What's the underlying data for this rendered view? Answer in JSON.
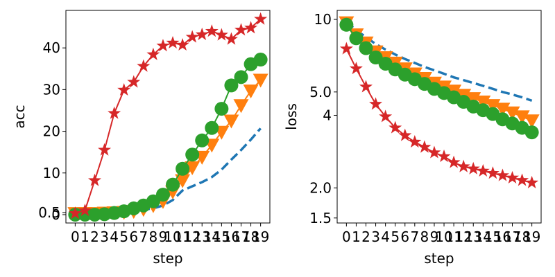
{
  "chart_data": [
    {
      "type": "line",
      "xlabel": "step",
      "ylabel": "acc",
      "x": [
        0,
        1,
        2,
        3,
        4,
        5,
        6,
        7,
        8,
        9,
        10,
        11,
        12,
        13,
        14,
        15,
        16,
        17,
        18,
        19
      ],
      "xticks": [
        "0",
        "1",
        "2",
        "3",
        "4",
        "5",
        "6",
        "7",
        "8",
        "9",
        "10",
        "11",
        "12",
        "13",
        "14",
        "15",
        "16",
        "17",
        "18",
        "19"
      ],
      "yscale": "linear",
      "ylim": [
        -2,
        49
      ],
      "yticks": [
        {
          "value": 0,
          "label": "0"
        },
        {
          "value": 0.5,
          "label": "0.5"
        },
        {
          "value": 10,
          "label": "10"
        },
        {
          "value": 20,
          "label": "20"
        },
        {
          "value": 30,
          "label": "30"
        },
        {
          "value": 40,
          "label": "40"
        }
      ],
      "series": [
        {
          "color": "#1f77b4",
          "style": "dashed",
          "marker": "none",
          "values": [
            0.2,
            0.2,
            0.2,
            0.3,
            0.4,
            0.6,
            0.9,
            1.2,
            1.5,
            2.2,
            3.5,
            5.8,
            6.8,
            7.8,
            9.0,
            10.8,
            13.2,
            15.5,
            18.0,
            20.7
          ]
        },
        {
          "color": "#ff7f0e",
          "style": "solid",
          "marker": "triangle-down",
          "values": [
            0.3,
            0.3,
            0.3,
            0.4,
            0.5,
            0.6,
            0.8,
            1.3,
            2.2,
            3.2,
            5.5,
            8.2,
            11.3,
            13.8,
            16.7,
            19.8,
            22.5,
            26.2,
            29.7,
            32.3
          ]
        },
        {
          "color": "#2ca02c",
          "style": "solid",
          "marker": "circle",
          "values": [
            0,
            0,
            0,
            0.1,
            0.4,
            0.8,
            1.5,
            2.2,
            3.2,
            4.8,
            7.2,
            11.0,
            14.4,
            17.8,
            20.8,
            25.4,
            31.0,
            33.0,
            36.1,
            37.2
          ]
        },
        {
          "color": "#d62728",
          "style": "solid",
          "marker": "star",
          "values": [
            0.3,
            1.0,
            8.2,
            15.5,
            24.3,
            29.9,
            31.8,
            35.6,
            38.4,
            40.5,
            41.2,
            40.7,
            42.6,
            43.2,
            44.0,
            43.1,
            42.1,
            44.3,
            44.8,
            46.9
          ]
        }
      ]
    },
    {
      "type": "line",
      "xlabel": "step",
      "ylabel": "loss",
      "x": [
        0,
        1,
        2,
        3,
        4,
        5,
        6,
        7,
        8,
        9,
        10,
        11,
        12,
        13,
        14,
        15,
        16,
        17,
        18,
        19
      ],
      "xticks": [
        "0",
        "1",
        "2",
        "3",
        "4",
        "5",
        "6",
        "7",
        "8",
        "9",
        "10",
        "11",
        "12",
        "13",
        "14",
        "15",
        "16",
        "17",
        "18",
        "19"
      ],
      "yscale": "log",
      "ylim": [
        1.43,
        10.9
      ],
      "yticks": [
        {
          "value": 1.5,
          "label": "1.5"
        },
        {
          "value": 2.0,
          "label": "2.0"
        },
        {
          "value": 4,
          "label": "4"
        },
        {
          "value": 5.0,
          "label": "5.0"
        },
        {
          "value": 10,
          "label": "10"
        }
      ],
      "series": [
        {
          "color": "#1f77b4",
          "style": "dashed",
          "marker": "none",
          "values": [
            9.8,
            9.0,
            8.45,
            7.9,
            7.5,
            7.15,
            6.85,
            6.6,
            6.35,
            6.15,
            5.95,
            5.75,
            5.6,
            5.45,
            5.3,
            5.15,
            5.0,
            4.88,
            4.75,
            4.6
          ]
        },
        {
          "color": "#ff7f0e",
          "style": "solid",
          "marker": "triangle-down",
          "values": [
            9.7,
            8.65,
            8.0,
            7.35,
            6.95,
            6.6,
            6.25,
            5.95,
            5.7,
            5.45,
            5.25,
            5.05,
            4.85,
            4.7,
            4.55,
            4.4,
            4.25,
            4.1,
            3.95,
            3.8
          ]
        },
        {
          "color": "#2ca02c",
          "style": "solid",
          "marker": "circle",
          "values": [
            9.5,
            8.35,
            7.6,
            6.95,
            6.55,
            6.2,
            5.9,
            5.65,
            5.4,
            5.15,
            4.95,
            4.75,
            4.55,
            4.35,
            4.2,
            4.05,
            3.85,
            3.7,
            3.55,
            3.4
          ]
        },
        {
          "color": "#d62728",
          "style": "solid",
          "marker": "star",
          "values": [
            7.55,
            6.25,
            5.25,
            4.45,
            3.95,
            3.55,
            3.3,
            3.1,
            2.95,
            2.8,
            2.7,
            2.55,
            2.45,
            2.4,
            2.35,
            2.3,
            2.25,
            2.2,
            2.15,
            2.1
          ]
        }
      ]
    }
  ]
}
